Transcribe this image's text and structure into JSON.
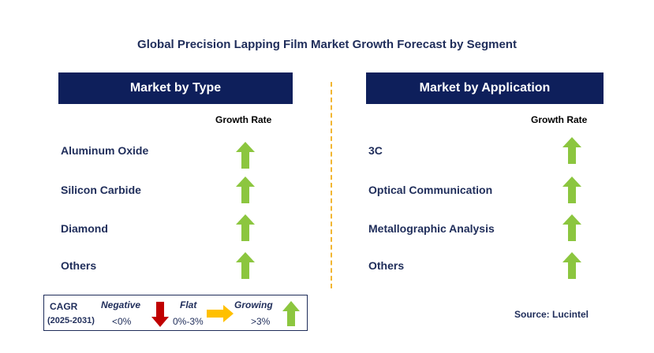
{
  "title": "Global Precision Lapping Film Market Growth Forecast by Segment",
  "left_panel": {
    "header": "Market by Type",
    "growth_rate_label": "Growth Rate",
    "items": [
      {
        "label": "Aluminum Oxide",
        "trend": "growing"
      },
      {
        "label": "Silicon Carbide",
        "trend": "growing"
      },
      {
        "label": "Diamond",
        "trend": "growing"
      },
      {
        "label": "Others",
        "trend": "growing"
      }
    ]
  },
  "right_panel": {
    "header": "Market by Application",
    "growth_rate_label": "Growth Rate",
    "items": [
      {
        "label": "3C",
        "trend": "growing"
      },
      {
        "label": "Optical Communication",
        "trend": "growing"
      },
      {
        "label": "Metallographic Analysis",
        "trend": "growing"
      },
      {
        "label": "Others",
        "trend": "growing"
      }
    ]
  },
  "legend": {
    "cagr_label": "CAGR",
    "period": "(2025-2031)",
    "negative_label": "Negative",
    "negative_range": "<0%",
    "flat_label": "Flat",
    "flat_range": "0%-3%",
    "growing_label": "Growing",
    "growing_range": ">3%"
  },
  "source": "Source: Lucintel",
  "colors": {
    "header_bg": "#0e1f5b",
    "text": "#1f2d5a",
    "growing_arrow": "#8cc63f",
    "negative_arrow": "#c00000",
    "flat_arrow": "#ffc000",
    "divider": "#f2b632"
  }
}
